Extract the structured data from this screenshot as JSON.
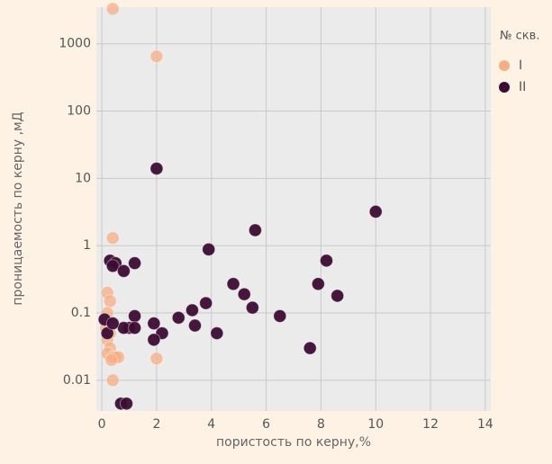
{
  "chart_data": {
    "type": "scatter",
    "x_label": "пористость по керну,%",
    "y_label": "проницаемость по керну ,мД",
    "legend_title": "№ скв.",
    "log_y": true,
    "grid": true,
    "legend": "right",
    "xlim": [
      -0.2,
      14.2
    ],
    "ylim": [
      0.0035,
      3500
    ],
    "xticks": [
      0,
      2,
      4,
      6,
      8,
      10,
      12,
      14
    ],
    "yticks": [
      0.01,
      0.1,
      1,
      10,
      100,
      1000
    ],
    "series": [
      {
        "name": "I",
        "color": "#f5ae86",
        "x": [
          0.4,
          2.0,
          0.4,
          0.2,
          0.3,
          0.2,
          0.25,
          0.3,
          0.2,
          0.3,
          0.2,
          0.4,
          0.5,
          0.6,
          0.4,
          2.0,
          0.15,
          0.35
        ],
        "values": [
          3300,
          650,
          1.3,
          0.2,
          0.15,
          0.1,
          0.07,
          0.05,
          0.04,
          0.03,
          0.025,
          0.022,
          0.022,
          0.022,
          0.01,
          0.021,
          0.06,
          0.02
        ]
      },
      {
        "name": "II",
        "color": "#3d0c33",
        "x": [
          0.3,
          0.5,
          0.4,
          0.8,
          1.2,
          2.0,
          3.9,
          5.6,
          10,
          8.2,
          7.9,
          8.6,
          4.8,
          5.2,
          5.5,
          6.5,
          7.6,
          3.8,
          3.3,
          2.8,
          3.4,
          4.2,
          2.2,
          1.9,
          1.9,
          1.2,
          1.0,
          0.8,
          1.2,
          0.1,
          0.7,
          0.9,
          0.2,
          0.4
        ],
        "values": [
          0.6,
          0.55,
          0.5,
          0.42,
          0.55,
          14,
          0.88,
          1.7,
          3.2,
          0.6,
          0.27,
          0.18,
          0.27,
          0.19,
          0.12,
          0.09,
          0.03,
          0.14,
          0.11,
          0.085,
          0.065,
          0.05,
          0.05,
          0.04,
          0.07,
          0.09,
          0.06,
          0.06,
          0.06,
          0.08,
          0.0045,
          0.0045,
          0.05,
          0.07
        ]
      }
    ]
  }
}
